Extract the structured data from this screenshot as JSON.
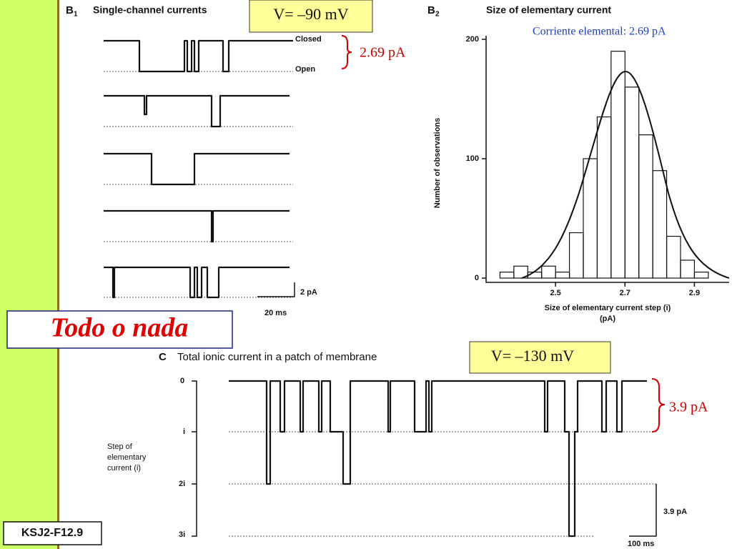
{
  "panel_b1": {
    "label": "B",
    "sub": "1",
    "title": "Single-channel currents",
    "voltage": "V= –90 mV",
    "closed": "Closed",
    "open": "Open",
    "step": "2.69 pA",
    "scale_y": "2 pA",
    "scale_x": "20 ms"
  },
  "panel_b2": {
    "label": "B",
    "sub": "2",
    "note": "Corriente elemental: 2.69 pA"
  },
  "chart_data": {
    "type": "histogram",
    "title": "Size of elementary current",
    "xlabel": "Size of elementary current step (i)",
    "xlabel_unit": "(pA)",
    "ylabel": "Number of observations",
    "bins": [
      2.34,
      2.38,
      2.42,
      2.46,
      2.5,
      2.54,
      2.58,
      2.62,
      2.66,
      2.7,
      2.74,
      2.78,
      2.82,
      2.86,
      2.9,
      2.94,
      2.98
    ],
    "values": [
      5,
      10,
      5,
      10,
      5,
      38,
      100,
      135,
      190,
      160,
      120,
      90,
      35,
      15,
      5,
      0
    ],
    "xlim": [
      2.3,
      3.0
    ],
    "xticks": [
      2.5,
      2.7,
      2.9
    ],
    "ylim": [
      0,
      200
    ],
    "yticks": [
      0,
      100,
      200
    ]
  },
  "banner": "Todo o nada",
  "panel_c": {
    "label": "C",
    "title": "Total ionic current in a patch of membrane",
    "voltage": "V= –130 mV",
    "levels": [
      "0",
      "i",
      "2i",
      "3i"
    ],
    "ylabel": [
      "Step of",
      "elementary",
      "current (i)"
    ],
    "scale_y": "3.9 pA",
    "scale_x": "100 ms",
    "step": "3.9 pA"
  },
  "figure_id": "KSJ2-F12.9"
}
